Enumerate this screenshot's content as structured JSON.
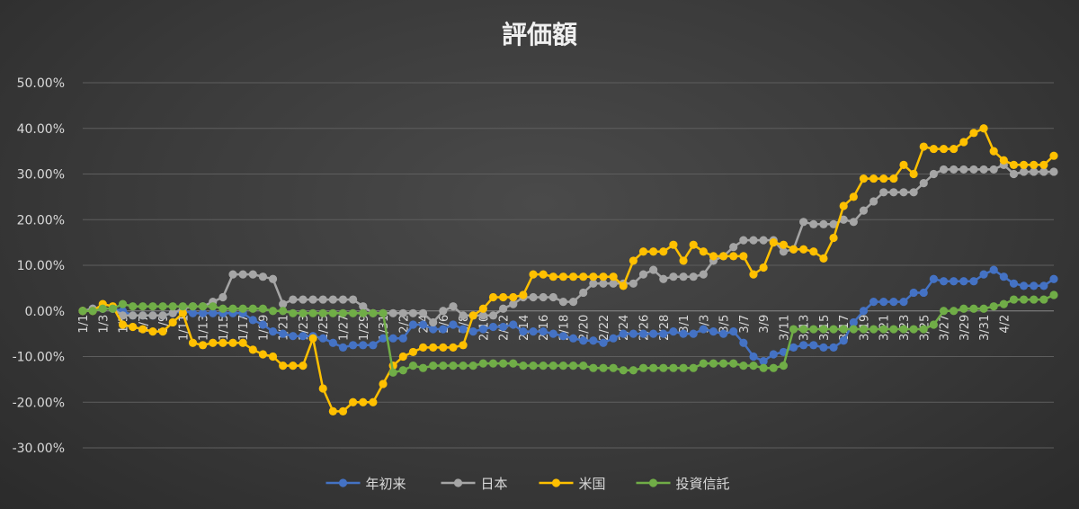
{
  "chart_data": {
    "type": "line",
    "title": "評価額",
    "xlabel": "",
    "ylabel": "",
    "ylim": [
      -30,
      50
    ],
    "ytick_labels": [
      "50.00%",
      "40.00%",
      "30.00%",
      "20.00%",
      "10.00%",
      "0.00%",
      "-10.00%",
      "-20.00%",
      "-30.00%"
    ],
    "ytick_values": [
      50,
      40,
      30,
      20,
      10,
      0,
      -10,
      -20,
      -30
    ],
    "grid": true,
    "legend_position": "bottom",
    "x_tick_labels": [
      "1/1",
      "1/3",
      "1/5",
      "1/7",
      "1/9",
      "1/11",
      "1/13",
      "1/15",
      "1/17",
      "1/19",
      "1/21",
      "1/23",
      "1/25",
      "1/27",
      "1/29",
      "1/31",
      "2/2",
      "2/4",
      "2/6",
      "2/8",
      "2/10",
      "2/12",
      "2/14",
      "2/16",
      "2/18",
      "2/20",
      "2/22",
      "2/24",
      "2/26",
      "2/28",
      "3/1",
      "3/3",
      "3/5",
      "3/7",
      "3/9",
      "3/11",
      "3/13",
      "3/15",
      "3/17",
      "3/19",
      "3/21",
      "3/23",
      "3/25",
      "3/27",
      "3/29",
      "3/31",
      "4/2"
    ],
    "series": [
      {
        "name": "年初来",
        "color": "#4472c4",
        "values": [
          0,
          0.5,
          0.5,
          0.5,
          0,
          -1,
          -1,
          -1,
          -1,
          -0.5,
          0,
          -0.5,
          -0.5,
          -0.5,
          -0.5,
          -0.5,
          -0.5,
          -2,
          -3,
          -4.5,
          -5,
          -5.5,
          -5.5,
          -5.5,
          -6,
          -7,
          -8,
          -7.5,
          -7.5,
          -7.5,
          -6,
          -6,
          -6,
          -3,
          -3,
          -4,
          -4,
          -3,
          -4,
          -4.5,
          -4,
          -3.5,
          -3.5,
          -3,
          -4.5,
          -4.5,
          -4.5,
          -5,
          -5.5,
          -6,
          -6.5,
          -6.5,
          -7,
          -6,
          -5,
          -5,
          -5,
          -5,
          -5,
          -4.5,
          -5,
          -5,
          -4,
          -4.5,
          -5,
          -4.5,
          -7,
          -10,
          -11,
          -9.5,
          -9,
          -8,
          -7.5,
          -7.5,
          -8,
          -8,
          -6.5,
          -2.5,
          0,
          2,
          2,
          2,
          2,
          4,
          4,
          7,
          6.5,
          6.5,
          6.5,
          6.5,
          8,
          9,
          7.5,
          6,
          5.5,
          5.5,
          5.5,
          7
        ]
      },
      {
        "name": "日本",
        "color": "#a5a5a5",
        "values": [
          0,
          0.5,
          0.5,
          0.5,
          -1,
          -1,
          -1,
          -1,
          -1,
          -0.5,
          0.5,
          1,
          1,
          2,
          3,
          8,
          8,
          8,
          7.5,
          7,
          1.5,
          2.5,
          2.5,
          2.5,
          2.5,
          2.5,
          2.5,
          2.5,
          1,
          -0.5,
          -0.5,
          -0.5,
          -0.5,
          -0.5,
          -0.5,
          -2.5,
          0,
          1,
          -1,
          -1,
          -1,
          -1,
          0.5,
          1.5,
          3,
          3,
          3,
          3,
          2,
          2,
          4,
          6,
          6,
          6,
          6,
          6,
          8,
          9,
          7,
          7.5,
          7.5,
          7.5,
          8,
          11,
          12,
          14,
          15.5,
          15.5,
          15.5,
          15.5,
          13,
          13.5,
          19.5,
          19,
          19,
          19,
          20,
          19.5,
          22,
          24,
          26,
          26,
          26,
          26,
          28,
          30,
          31,
          31,
          31,
          31,
          31,
          31,
          32,
          30,
          30.5,
          30.5,
          30.5,
          30.5
        ]
      },
      {
        "name": "米国",
        "color": "#ffc000",
        "values": [
          0,
          0,
          1.5,
          1,
          -3,
          -3.5,
          -4,
          -4.5,
          -4.5,
          -2.5,
          -0.5,
          -7,
          -7.5,
          -7,
          -7,
          -7,
          -7,
          -8.5,
          -9.5,
          -10,
          -12,
          -12,
          -12,
          -6,
          -17,
          -22,
          -22,
          -20,
          -20,
          -20,
          -16,
          -12,
          -10,
          -9,
          -8,
          -8,
          -8,
          -8,
          -7.5,
          -1,
          0.5,
          3,
          3,
          3,
          3.5,
          8,
          8,
          7.5,
          7.5,
          7.5,
          7.5,
          7.5,
          7.5,
          7.5,
          5.5,
          11,
          13,
          13,
          13,
          14.5,
          11,
          14.5,
          13,
          12,
          12,
          12,
          12,
          8,
          9.5,
          15,
          14.5,
          13.5,
          13.5,
          13,
          11.5,
          16,
          23,
          25,
          29,
          29,
          29,
          29,
          32,
          30,
          36,
          35.5,
          35.5,
          35.5,
          37,
          39,
          40,
          35,
          33,
          32,
          32,
          32,
          32,
          34
        ]
      },
      {
        "name": "投資信託",
        "color": "#70ad47",
        "values": [
          0,
          0,
          0.5,
          0.5,
          1.5,
          1,
          1,
          1,
          1,
          1,
          1,
          1,
          1,
          1,
          0.5,
          0.5,
          0.5,
          0.5,
          0.5,
          0,
          0,
          -0.5,
          -0.5,
          -0.5,
          -0.5,
          -0.5,
          -0.5,
          -0.5,
          -0.5,
          -0.5,
          -0.5,
          -13.5,
          -13,
          -12,
          -12.5,
          -12,
          -12,
          -12,
          -12,
          -12,
          -11.5,
          -11.5,
          -11.5,
          -11.5,
          -12,
          -12,
          -12,
          -12,
          -12,
          -12,
          -12,
          -12.5,
          -12.5,
          -12.5,
          -13,
          -13,
          -12.5,
          -12.5,
          -12.5,
          -12.5,
          -12.5,
          -12.5,
          -11.5,
          -11.5,
          -11.5,
          -11.5,
          -12,
          -12,
          -12.5,
          -12.5,
          -12,
          -4,
          -4,
          -4,
          -4,
          -4,
          -4,
          -4,
          -4,
          -4,
          -4,
          -4,
          -4,
          -4,
          -4,
          -3,
          0,
          0,
          0.5,
          0.5,
          0.5,
          1,
          1.5,
          2.5,
          2.5,
          2.5,
          2.5,
          3.5
        ]
      }
    ]
  }
}
